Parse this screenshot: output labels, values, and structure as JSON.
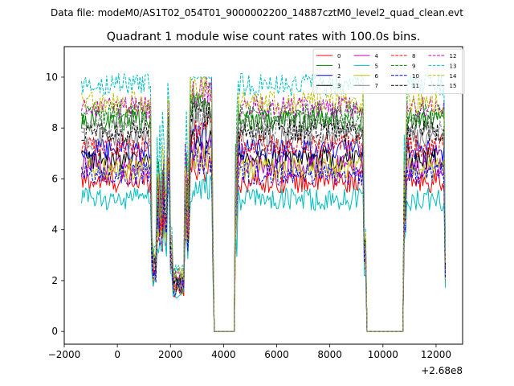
{
  "chart_data": {
    "type": "line",
    "suptitle": "Data file: modeM0/AS1T02_054T01_9000002200_14887cztM0_level2_quad_clean.evt",
    "title": "Quadrant 1 module wise count rates with 100.0s bins.",
    "xlabel": "",
    "ylabel": "",
    "x_offset_label": "+2.68e8",
    "xlim": [
      -2000,
      13000
    ],
    "ylim": [
      -0.5,
      11.2
    ],
    "xticks": [
      -2000,
      0,
      2000,
      4000,
      6000,
      8000,
      10000,
      12000
    ],
    "xtick_labels": [
      "−2000",
      "0",
      "2000",
      "4000",
      "6000",
      "8000",
      "10000",
      "12000"
    ],
    "yticks": [
      0,
      2,
      4,
      6,
      8,
      10
    ],
    "ytick_labels": [
      "0",
      "2",
      "4",
      "6",
      "8",
      "10"
    ],
    "legend_position": "top-right",
    "legend_ncol": 4,
    "time_profile": {
      "bin_size": 100,
      "segments": [
        {
          "start": -1350,
          "end": 1250,
          "state": "on"
        },
        {
          "start": 1250,
          "end": 1300,
          "state": "drop"
        },
        {
          "start": 1300,
          "end": 1450,
          "state": "low",
          "level": 0.3
        },
        {
          "start": 1450,
          "end": 1600,
          "state": "rise"
        },
        {
          "start": 1600,
          "end": 1650,
          "state": "low",
          "level": 0.55
        },
        {
          "start": 1650,
          "end": 1700,
          "state": "rise"
        },
        {
          "start": 1700,
          "end": 1750,
          "state": "low",
          "level": 0.75
        },
        {
          "start": 1750,
          "end": 1850,
          "state": "dip",
          "level": 0.55
        },
        {
          "start": 1850,
          "end": 1950,
          "state": "high",
          "level": 0.95
        },
        {
          "start": 1950,
          "end": 2050,
          "state": "drop"
        },
        {
          "start": 2050,
          "end": 2500,
          "state": "low",
          "level": 0.22
        },
        {
          "start": 2500,
          "end": 2700,
          "state": "rise"
        },
        {
          "start": 2700,
          "end": 3550,
          "state": "high",
          "level": 1.05
        },
        {
          "start": 3550,
          "end": 3600,
          "state": "drop"
        },
        {
          "start": 3600,
          "end": 4400,
          "state": "zero",
          "level": 0
        },
        {
          "start": 4400,
          "end": 4500,
          "state": "rise"
        },
        {
          "start": 4500,
          "end": 9250,
          "state": "on"
        },
        {
          "start": 9250,
          "end": 9350,
          "state": "drop"
        },
        {
          "start": 9350,
          "end": 10750,
          "state": "zero",
          "level": 0
        },
        {
          "start": 10750,
          "end": 10850,
          "state": "rise"
        },
        {
          "start": 10850,
          "end": 12300,
          "state": "on"
        },
        {
          "start": 12300,
          "end": 12350,
          "state": "drop",
          "level": 0.1
        }
      ]
    },
    "series": [
      {
        "name": "0",
        "color": "#ff0000",
        "dash": false,
        "mean": 5.9
      },
      {
        "name": "1",
        "color": "#008000",
        "dash": false,
        "mean": 8.3
      },
      {
        "name": "2",
        "color": "#0000ff",
        "dash": false,
        "mean": 7.1
      },
      {
        "name": "3",
        "color": "#000000",
        "dash": false,
        "mean": 6.8
      },
      {
        "name": "4",
        "color": "#bf00bf",
        "dash": false,
        "mean": 6.5
      },
      {
        "name": "5",
        "color": "#00bfbf",
        "dash": false,
        "mean": 5.2
      },
      {
        "name": "6",
        "color": "#bfbf00",
        "dash": false,
        "mean": 6.4
      },
      {
        "name": "7",
        "color": "#808080",
        "dash": false,
        "mean": 7.6
      },
      {
        "name": "8",
        "color": "#ff0000",
        "dash": true,
        "mean": 7.3
      },
      {
        "name": "9",
        "color": "#008000",
        "dash": true,
        "mean": 8.6
      },
      {
        "name": "10",
        "color": "#0000ff",
        "dash": true,
        "mean": 6.2
      },
      {
        "name": "11",
        "color": "#000000",
        "dash": true,
        "mean": 7.9
      },
      {
        "name": "12",
        "color": "#bf00bf",
        "dash": true,
        "mean": 8.8
      },
      {
        "name": "13",
        "color": "#00bfbf",
        "dash": true,
        "mean": 9.7
      },
      {
        "name": "14",
        "color": "#bfbf00",
        "dash": true,
        "mean": 9.0
      },
      {
        "name": "15",
        "color": "#808080",
        "dash": true,
        "mean": 8.1
      }
    ]
  }
}
